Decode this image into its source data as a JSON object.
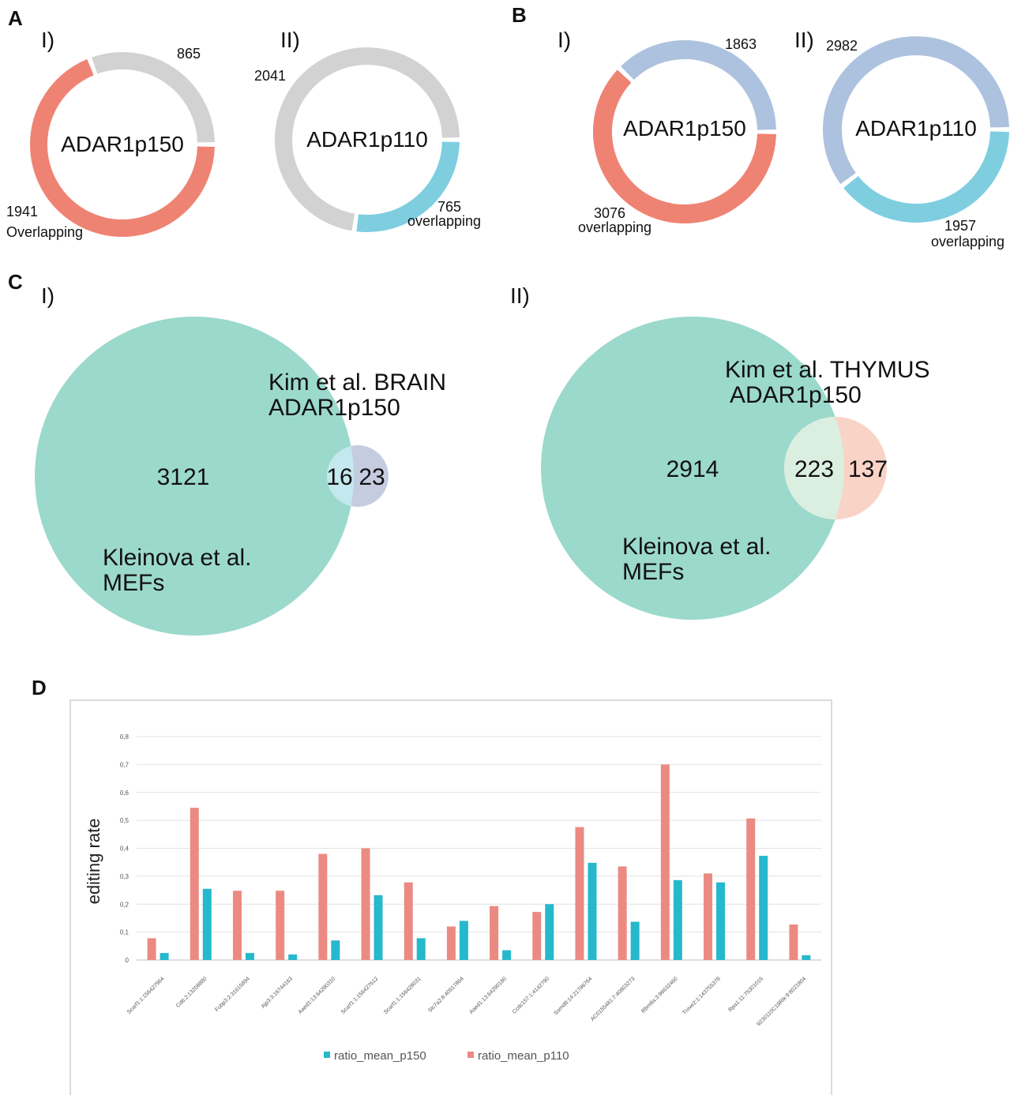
{
  "panels": {
    "A": {
      "letter": "A",
      "I": {
        "roman": "I)",
        "center": "ADAR1p150",
        "gray_value": 865,
        "gray_label": "865",
        "overlap_value": 1941,
        "overlap_number": "1941",
        "overlap_word": "Overlapping",
        "overlap_color": "#ef8373",
        "other_color": "#d2d2d2"
      },
      "II": {
        "roman": "II)",
        "center": "ADAR1p110",
        "gray_value": 2041,
        "gray_label": "2041",
        "overlap_value": 765,
        "overlap_number": "765",
        "overlap_word": "overlapping",
        "overlap_color": "#7ecee0",
        "other_color": "#d2d2d2"
      }
    },
    "B": {
      "letter": "B",
      "I": {
        "roman": "I)",
        "center": "ADAR1p150",
        "gray_value": 1863,
        "gray_label": "1863",
        "overlap_value": 3076,
        "overlap_number": "3076",
        "overlap_word": "overlapping",
        "overlap_color": "#ef8373",
        "other_color": "#adc2de"
      },
      "II": {
        "roman": "II)",
        "center": "ADAR1p110",
        "gray_value": 2982,
        "gray_label": "2982",
        "overlap_value": 1957,
        "overlap_number": "1957",
        "overlap_word": "overlapping",
        "overlap_color": "#7ecee0",
        "other_color": "#adc2de"
      }
    },
    "C": {
      "letter": "C",
      "I": {
        "roman": "I)",
        "big_label_1": "Kleinova et al.",
        "big_label_2": "MEFs",
        "small_label_1": "Kim et al. BRAIN",
        "small_label_2": "ADAR1p150",
        "big_only": "3121",
        "overlap": "16",
        "small_only": "23",
        "big_color": "#9bd9cc",
        "small_color": "#c6cce0",
        "overlap_color": "#c3e8ee"
      },
      "II": {
        "roman": "II)",
        "big_label_1": "Kleinova et al.",
        "big_label_2": "MEFs",
        "small_label_1": "Kim et al. THYMUS",
        "small_label_2": "ADAR1p150",
        "big_only": "2914",
        "overlap": "223",
        "small_only": "137",
        "big_color": "#9bd9cc",
        "small_color": "#f8d3c6",
        "overlap_color": "#dbefe1"
      }
    },
    "D": {
      "letter": "D"
    }
  },
  "chart_data": {
    "type": "bar",
    "ylabel": "editing rate",
    "ylim": [
      0,
      0.8
    ],
    "ytick_labels": [
      "0",
      "0,1",
      "0,2",
      "0,3",
      "0,4",
      "0,5",
      "0,6",
      "0,7",
      "0,8"
    ],
    "grid": true,
    "legend_position": "bottom",
    "categories": [
      "Scarf1:1:156427964",
      "Cd6:2:13208880",
      "Fubp3:2:31615894",
      "Ajp3:3:16744163",
      "Aaed1:13:64290310",
      "Scarf1:1:156427612",
      "Scarf1:1:156428031",
      "Slc7a2:8:40917864",
      "Aaed1:13:64290180",
      "Ccdc157:1:4142790",
      "Samd8:14:21796764",
      "AC0155481:7:40803273",
      "Rbm8a:3:96632460",
      "Trove2:1:143755378",
      "Rpa1:11:75301015",
      "9230110C19Rik:9:8021804"
    ],
    "series": [
      {
        "name": "ratio_mean_p150",
        "color": "#26b8cc",
        "values": [
          0.025,
          0.255,
          0.025,
          0.02,
          0.07,
          0.232,
          0.078,
          0.14,
          0.035,
          0.2,
          0.348,
          0.137,
          0.286,
          0.278,
          0.373,
          0.017
        ]
      },
      {
        "name": "ratio_mean_p110",
        "color": "#eb8a82",
        "values": [
          0.078,
          0.545,
          0.248,
          0.248,
          0.38,
          0.4,
          0.278,
          0.12,
          0.193,
          0.172,
          0.476,
          0.335,
          0.7,
          0.31,
          0.507,
          0.127
        ]
      }
    ]
  }
}
